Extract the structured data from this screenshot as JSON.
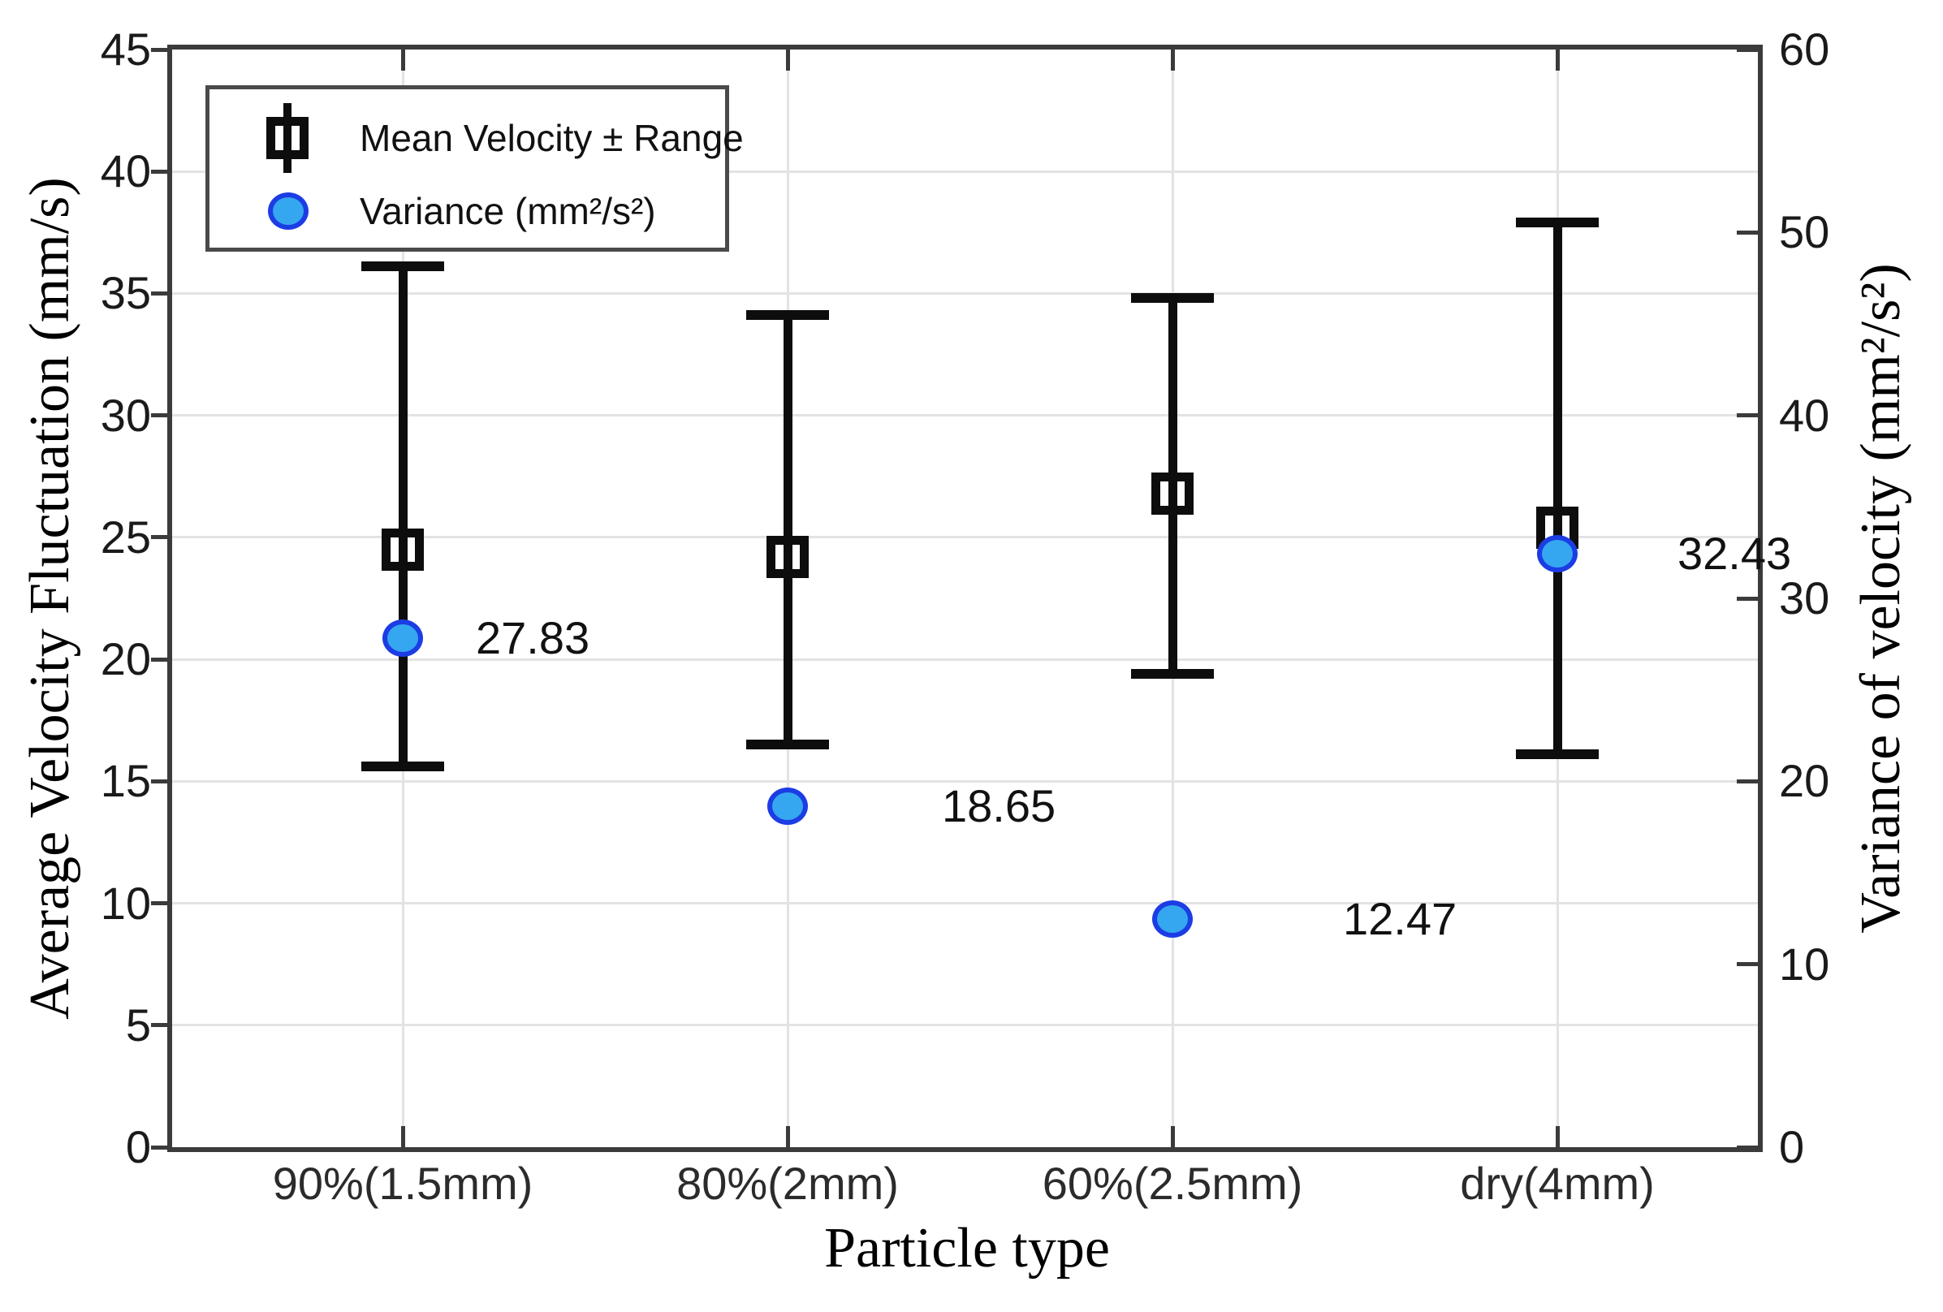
{
  "figure": {
    "background": "#ffffff",
    "axis_color": "#3b3b3b",
    "grid_color": "#e3e3e3",
    "errorbar_color": "#0d0d0d",
    "variance_fill": "#35a7f0",
    "variance_edge": "#1c3de4"
  },
  "chart_data": {
    "type": "scatter",
    "subtype": "errorbar-with-dual-y-axis",
    "categories": [
      "90%(1.5mm)",
      "80%(2mm)",
      "60%(2.5mm)",
      "dry(4mm)"
    ],
    "xlabel": "Particle type",
    "axes": {
      "left": {
        "label": "Average Velocity Fluctuation (mm/s)",
        "lim": [
          0,
          45
        ],
        "ticks": [
          0,
          5,
          10,
          15,
          20,
          25,
          30,
          35,
          40,
          45
        ],
        "grid": true
      },
      "right": {
        "label": "Variance of velocity (mm²/s²)",
        "lim": [
          0,
          60
        ],
        "ticks": [
          0,
          10,
          20,
          30,
          40,
          50,
          60
        ],
        "grid": false
      }
    },
    "series": [
      {
        "name": "Mean Velocity ± Range",
        "axis": "left",
        "marker": "square-errorbar",
        "color": "#0d0d0d",
        "mean": [
          24.5,
          24.2,
          26.8,
          25.4
        ],
        "upper": [
          36.1,
          34.1,
          34.8,
          37.9
        ],
        "lower": [
          15.6,
          16.5,
          19.4,
          16.1
        ]
      },
      {
        "name": "Variance (mm²/s²)",
        "axis": "right",
        "marker": "circle",
        "fill": "#35a7f0",
        "edge": "#1c3de4",
        "values": [
          27.83,
          18.65,
          12.47,
          32.43
        ],
        "point_labels": [
          "27.83",
          "18.65",
          "12.47",
          "32.43"
        ]
      }
    ],
    "legend_position": "top-left",
    "grid": true
  }
}
